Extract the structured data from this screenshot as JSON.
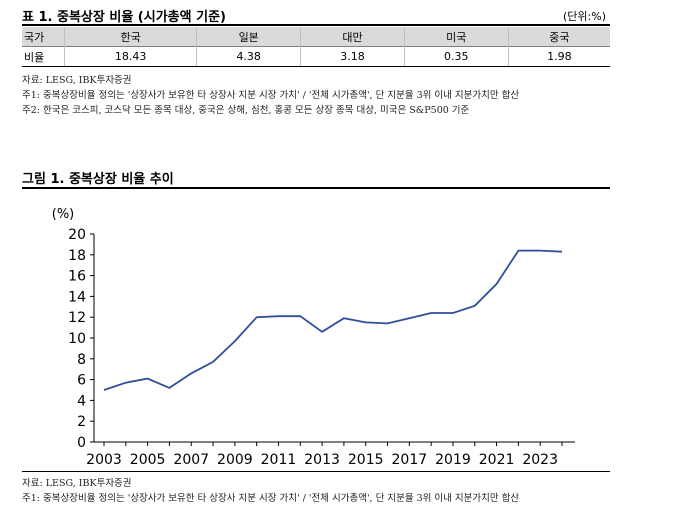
{
  "table": {
    "title": "표 1. 중복상장 비율 (시가총액 기준)",
    "unit": "(단위:%)",
    "headers": [
      "국가",
      "한국",
      "일본",
      "대만",
      "미국",
      "중국"
    ],
    "row_label": "비율",
    "values": [
      "18.43",
      "4.38",
      "3.18",
      "0.35",
      "1.98"
    ],
    "source": "자료: LESG, IBK투자증권",
    "note1": "주1: 중복상장비율 정의는 '상장사가 보유한 타 상장사 지분 시장 가치' / '전체 시가총액', 단 지분율 3위 이내 지분가치만 합산",
    "note2": "주2: 한국은 코스피, 코스닥 모든 종목 대상, 중국은 상해, 심천, 홍콩 모든 상장 종목 대상, 미국은 S&P500 기준"
  },
  "chart_title": "그림 1. 중복상장 비율 추이",
  "chart_source": "자료: LESG, IBK투자증권",
  "chart_note": "주1: 중복상장비율 정의는 '상장사가 보유한 타 상장사 지분 시장 가치' / '전체 시가총액', 단 지분율 3위 이내 지분가치만 합산",
  "chart_data": {
    "type": "line",
    "title": "그림 1. 중복상장 비율 추이",
    "ylabel": "(%)",
    "xlabel": "",
    "ylim": [
      0,
      20
    ],
    "yticks": [
      0,
      2,
      4,
      6,
      8,
      10,
      12,
      14,
      16,
      18,
      20
    ],
    "xlim": [
      2003,
      2024
    ],
    "xticks": [
      2003,
      2005,
      2007,
      2009,
      2011,
      2013,
      2015,
      2017,
      2019,
      2021,
      2023
    ],
    "grid": false,
    "line_color": "#2e4e9a",
    "series": [
      {
        "x": [
          2003,
          2004,
          2005,
          2006,
          2007,
          2008,
          2009,
          2010,
          2011,
          2012,
          2013,
          2014,
          2015,
          2016,
          2017,
          2018,
          2019,
          2020,
          2021,
          2022,
          2023,
          2024
        ],
        "values": [
          5.0,
          5.7,
          6.1,
          5.2,
          6.6,
          7.7,
          9.7,
          12.0,
          12.1,
          12.1,
          10.6,
          11.9,
          11.5,
          11.4,
          11.9,
          12.4,
          12.4,
          13.1,
          15.2,
          18.4,
          18.4,
          18.3
        ]
      }
    ]
  }
}
